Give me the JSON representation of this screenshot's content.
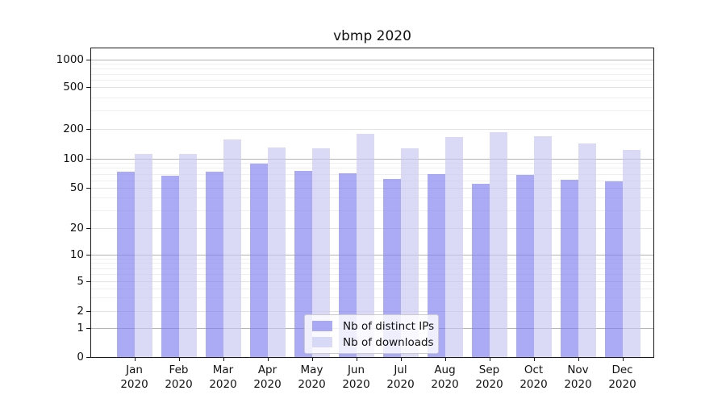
{
  "chart_data": {
    "type": "bar",
    "title": "vbmp 2020",
    "categories": [
      "Jan 2020",
      "Feb 2020",
      "Mar 2020",
      "Apr 2020",
      "May 2020",
      "Jun 2020",
      "Jul 2020",
      "Aug 2020",
      "Sep 2020",
      "Oct 2020",
      "Nov 2020",
      "Dec 2020"
    ],
    "series": [
      {
        "name": "Nb of distinct IPs",
        "color": "#7c7cf0",
        "fill_alpha": 0.65,
        "values": [
          74,
          67,
          73,
          88,
          75,
          71,
          62,
          69,
          55,
          68,
          61,
          58
        ]
      },
      {
        "name": "Nb of downloads",
        "color": "#c6c6f3",
        "fill_alpha": 0.65,
        "values": [
          112,
          112,
          157,
          130,
          126,
          178,
          128,
          165,
          185,
          170,
          142,
          122
        ]
      }
    ],
    "xlabel": "",
    "ylabel": "",
    "yscale": "symlog",
    "ylim": [
      0,
      1300
    ],
    "y_ticks": [
      0,
      1,
      2,
      5,
      10,
      20,
      50,
      100,
      200,
      500,
      1000
    ],
    "y_minor_ticks": [
      3,
      4,
      6,
      7,
      8,
      9,
      30,
      40,
      60,
      70,
      80,
      90,
      300,
      400,
      600,
      700,
      800,
      900
    ],
    "grid": true,
    "legend_position": "lower center",
    "colors": {
      "spine": "#1a1a1a",
      "grid_major": "#b4b4b4",
      "grid_minor": "#efefef",
      "background": "#ffffff"
    }
  }
}
